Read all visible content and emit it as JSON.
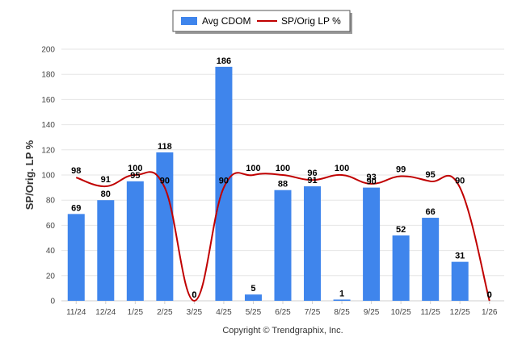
{
  "chart_data": {
    "type": "bar",
    "title": "",
    "xlabel": "",
    "ylabel": "SP/Orig. LP %",
    "ylim": [
      0,
      200
    ],
    "yticks": [
      0,
      20,
      40,
      60,
      80,
      100,
      120,
      140,
      160,
      180,
      200
    ],
    "categories": [
      "11/24",
      "12/24",
      "1/25",
      "2/25",
      "3/25",
      "4/25",
      "5/25",
      "6/25",
      "7/25",
      "8/25",
      "9/25",
      "10/25",
      "11/25",
      "12/25",
      "1/26"
    ],
    "series": [
      {
        "name": "Avg CDOM",
        "type": "bar",
        "color": "#3f85ec",
        "values": [
          69,
          80,
          95,
          118,
          0,
          186,
          5,
          88,
          91,
          1,
          90,
          52,
          66,
          31,
          0
        ]
      },
      {
        "name": "SP/Orig LP %",
        "type": "line",
        "color": "#c00000",
        "values": [
          98,
          91,
          100,
          90,
          0,
          90,
          100,
          100,
          96,
          100,
          93,
          99,
          95,
          90,
          0
        ]
      }
    ],
    "legend_position": "top-center",
    "grid": true
  },
  "footer": {
    "copyright": "Copyright © Trendgraphix, Inc."
  }
}
